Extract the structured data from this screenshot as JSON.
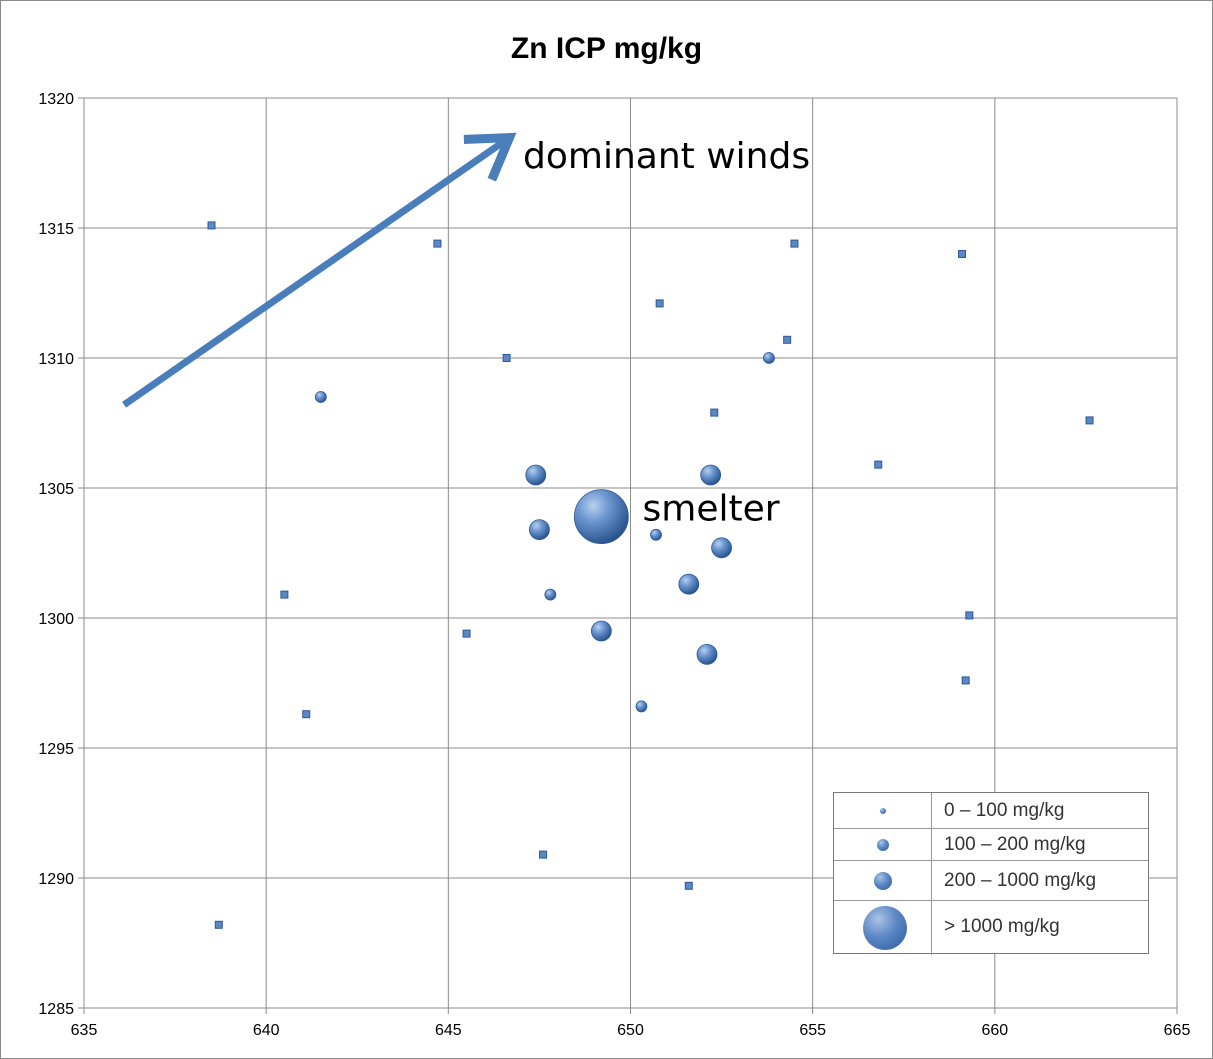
{
  "chart_data": {
    "type": "scatter",
    "title": "Zn ICP mg/kg",
    "xlim": [
      635,
      665
    ],
    "ylim": [
      1285,
      1320
    ],
    "x_ticks": [
      635,
      640,
      645,
      650,
      655,
      660,
      665
    ],
    "y_ticks": [
      1285,
      1290,
      1295,
      1300,
      1305,
      1310,
      1315,
      1320
    ],
    "grid": true,
    "point_colors": {
      "fill": "#5b87c5",
      "edge": "#2c5a98"
    },
    "points": [
      {
        "x": 638.5,
        "y": 1315.1,
        "class": "0 – 100 mg/kg"
      },
      {
        "x": 644.7,
        "y": 1314.4,
        "class": "0 – 100 mg/kg"
      },
      {
        "x": 654.5,
        "y": 1314.4,
        "class": "0 – 100 mg/kg"
      },
      {
        "x": 659.1,
        "y": 1314.0,
        "class": "0 – 100 mg/kg"
      },
      {
        "x": 650.8,
        "y": 1312.1,
        "class": "0 – 100 mg/kg"
      },
      {
        "x": 654.3,
        "y": 1310.7,
        "class": "0 – 100 mg/kg"
      },
      {
        "x": 646.6,
        "y": 1310.0,
        "class": "0 – 100 mg/kg"
      },
      {
        "x": 653.8,
        "y": 1310.0,
        "class": "100 – 200 mg/kg"
      },
      {
        "x": 641.5,
        "y": 1308.5,
        "class": "100 – 200 mg/kg"
      },
      {
        "x": 652.3,
        "y": 1307.9,
        "class": "0 – 100 mg/kg"
      },
      {
        "x": 662.6,
        "y": 1307.6,
        "class": "0 – 100 mg/kg"
      },
      {
        "x": 656.8,
        "y": 1305.9,
        "class": "0 – 100 mg/kg"
      },
      {
        "x": 647.4,
        "y": 1305.5,
        "class": "200 – 1000 mg/kg"
      },
      {
        "x": 652.2,
        "y": 1305.5,
        "class": "200 – 1000 mg/kg"
      },
      {
        "x": 649.2,
        "y": 1303.9,
        "class": "> 1000 mg/kg"
      },
      {
        "x": 647.5,
        "y": 1303.4,
        "class": "200 – 1000 mg/kg"
      },
      {
        "x": 650.7,
        "y": 1303.2,
        "class": "100 – 200 mg/kg"
      },
      {
        "x": 652.5,
        "y": 1302.7,
        "class": "200 – 1000 mg/kg"
      },
      {
        "x": 651.6,
        "y": 1301.3,
        "class": "200 – 1000 mg/kg"
      },
      {
        "x": 640.5,
        "y": 1300.9,
        "class": "0 – 100 mg/kg"
      },
      {
        "x": 647.8,
        "y": 1300.9,
        "class": "100 – 200 mg/kg"
      },
      {
        "x": 659.3,
        "y": 1300.1,
        "class": "0 – 100 mg/kg"
      },
      {
        "x": 645.5,
        "y": 1299.4,
        "class": "0 – 100 mg/kg"
      },
      {
        "x": 649.2,
        "y": 1299.5,
        "class": "200 – 1000 mg/kg"
      },
      {
        "x": 652.1,
        "y": 1298.6,
        "class": "200 – 1000 mg/kg"
      },
      {
        "x": 659.2,
        "y": 1297.6,
        "class": "0 – 100 mg/kg"
      },
      {
        "x": 650.3,
        "y": 1296.6,
        "class": "100 – 200 mg/kg"
      },
      {
        "x": 641.1,
        "y": 1296.3,
        "class": "0 – 100 mg/kg"
      },
      {
        "x": 647.6,
        "y": 1290.9,
        "class": "0 – 100 mg/kg"
      },
      {
        "x": 651.6,
        "y": 1289.7,
        "class": "0 – 100 mg/kg"
      },
      {
        "x": 638.7,
        "y": 1288.2,
        "class": "0 – 100 mg/kg"
      }
    ],
    "legend": {
      "placement": "bottom-right",
      "entries": [
        "0 – 100 mg/kg",
        "100 – 200 mg/kg",
        "200 – 1000 mg/kg",
        "> 1000 mg/kg"
      ]
    },
    "annotations": {
      "winds_label": "dominant winds",
      "winds_arrow": {
        "from": [
          636.1,
          1308.2
        ],
        "to": [
          646.6,
          1318.4
        ],
        "color": "#4a7ebb"
      },
      "smelter_label": "smelter",
      "smelter_label_at": [
        650.0,
        1303.9
      ]
    }
  }
}
